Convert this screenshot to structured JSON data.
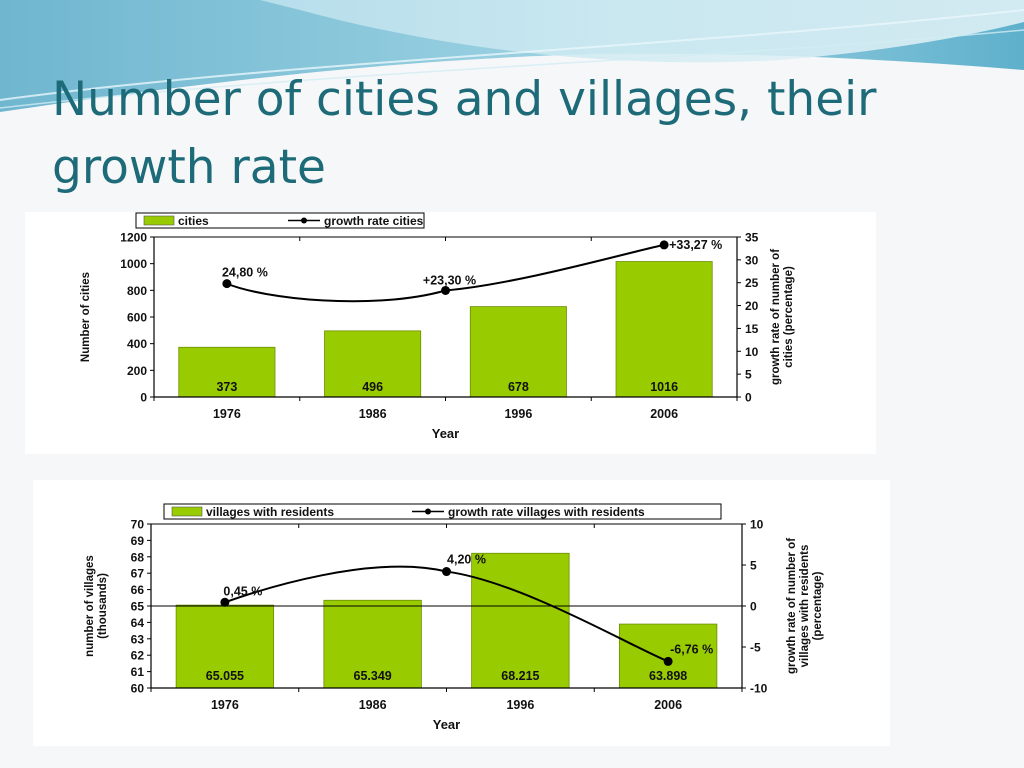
{
  "slide": {
    "title": "Number of cities and villages,  their growth rate"
  },
  "colors": {
    "bar": "#99cc00",
    "title": "#1d6a78",
    "line": "#000000"
  },
  "chart_data": [
    {
      "type": "bar+line",
      "legend": [
        "cities",
        "growth rate cities"
      ],
      "legend_position": "top-left",
      "categories": [
        "1976",
        "1986",
        "1996",
        "2006"
      ],
      "series": [
        {
          "name": "cities",
          "type": "bar",
          "axis": "left",
          "values": [
            373,
            496,
            678,
            1016
          ],
          "labels": [
            "373",
            "496",
            "678",
            "1016"
          ]
        },
        {
          "name": "growth rate cities",
          "type": "line",
          "axis": "right",
          "values": [
            24.8,
            null,
            23.3,
            33.27
          ],
          "x_positions": [
            0,
            1,
            1.5,
            3
          ],
          "labels": [
            "24,80 %",
            "",
            "+23,30 %",
            "+33,27 %"
          ]
        }
      ],
      "xlabel": "Year",
      "ylabel": "Number of cities",
      "y2label": "growth rate of number of cities (percentage)",
      "ylim": [
        0,
        1200
      ],
      "yticks": [
        "0",
        "200",
        "400",
        "600",
        "800",
        "1000",
        "1200"
      ],
      "y2lim": [
        0,
        35
      ],
      "y2ticks": [
        "0",
        "5",
        "10",
        "15",
        "20",
        "25",
        "30",
        "35"
      ],
      "grid": false
    },
    {
      "type": "bar+line",
      "legend": [
        "villages with residents",
        "growth rate villages with residents"
      ],
      "legend_position": "top-left",
      "categories": [
        "1976",
        "1986",
        "1996",
        "2006"
      ],
      "series": [
        {
          "name": "villages with residents",
          "type": "bar",
          "axis": "left",
          "values": [
            65.055,
            65.349,
            68.215,
            63.898
          ],
          "labels": [
            "65.055",
            "65.349",
            "68.215",
            "63.898"
          ]
        },
        {
          "name": "growth rate villages with residents",
          "type": "line",
          "axis": "right",
          "values": [
            0.45,
            null,
            4.2,
            -6.76
          ],
          "x_positions": [
            0,
            1,
            1.5,
            3
          ],
          "labels": [
            "0,45 %",
            "",
            "4,20 %",
            "-6,76 %"
          ]
        }
      ],
      "xlabel": "Year",
      "ylabel": "number of villages (thousands)",
      "y2label": "growth rate of number of villages with residents (percentage)",
      "ylim": [
        60,
        70
      ],
      "yticks": [
        "60",
        "61",
        "62",
        "63",
        "64",
        "65",
        "66",
        "67",
        "68",
        "69",
        "70"
      ],
      "y2lim": [
        -10,
        10
      ],
      "y2ticks": [
        "-10",
        "-5",
        "0",
        "5",
        "10"
      ],
      "grid": false
    }
  ]
}
